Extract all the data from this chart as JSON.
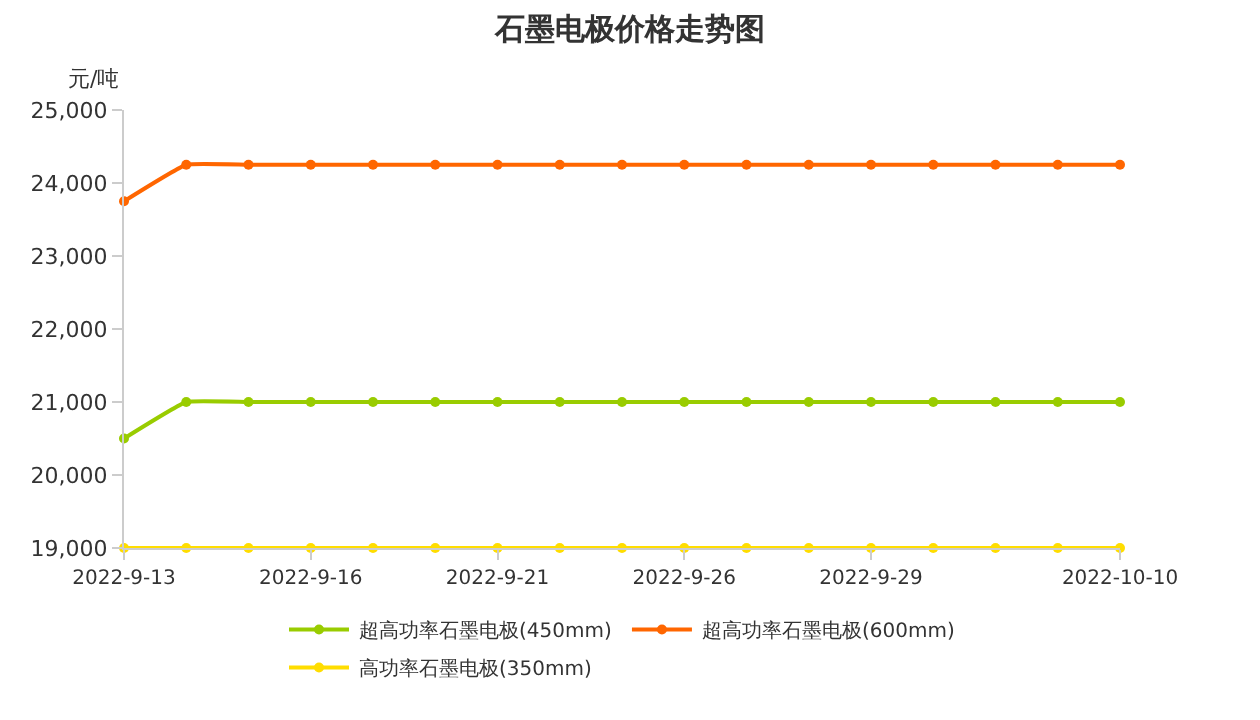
{
  "chart_data": {
    "type": "line",
    "title": "石墨电极价格走势图",
    "ylabel": "元/吨",
    "categories": [
      "2022-9-13",
      null,
      null,
      "2022-9-16",
      null,
      null,
      "2022-9-21",
      null,
      null,
      "2022-9-26",
      null,
      null,
      "2022-9-29",
      null,
      null,
      null,
      "2022-10-10"
    ],
    "series": [
      {
        "name": "超高功率石墨电极(450mm)",
        "color": "#99cc00",
        "values": [
          20500,
          21000,
          21000,
          21000,
          21000,
          21000,
          21000,
          21000,
          21000,
          21000,
          21000,
          21000,
          21000,
          21000,
          21000,
          21000,
          21000
        ]
      },
      {
        "name": "超高功率石墨电极(600mm)",
        "color": "#ff6600",
        "values": [
          23750,
          24250,
          24250,
          24250,
          24250,
          24250,
          24250,
          24250,
          24250,
          24250,
          24250,
          24250,
          24250,
          24250,
          24250,
          24250,
          24250
        ]
      },
      {
        "name": "高功率石墨电极(350mm)",
        "color": "#ffdd00",
        "values": [
          19000,
          19000,
          19000,
          19000,
          19000,
          19000,
          19000,
          19000,
          19000,
          19000,
          19000,
          19000,
          19000,
          19000,
          19000,
          19000,
          19000
        ]
      }
    ],
    "ylim": [
      19000,
      25000
    ],
    "yticks": [
      {
        "value": 19000,
        "label": "19,000"
      },
      {
        "value": 20000,
        "label": "20,000"
      },
      {
        "value": 21000,
        "label": "21,000"
      },
      {
        "value": 22000,
        "label": "22,000"
      },
      {
        "value": 23000,
        "label": "23,000"
      },
      {
        "value": 24000,
        "label": "24,000"
      },
      {
        "value": 25000,
        "label": "25,000"
      }
    ],
    "legend": "bottom",
    "marker": "circle",
    "line_style": "solid"
  }
}
